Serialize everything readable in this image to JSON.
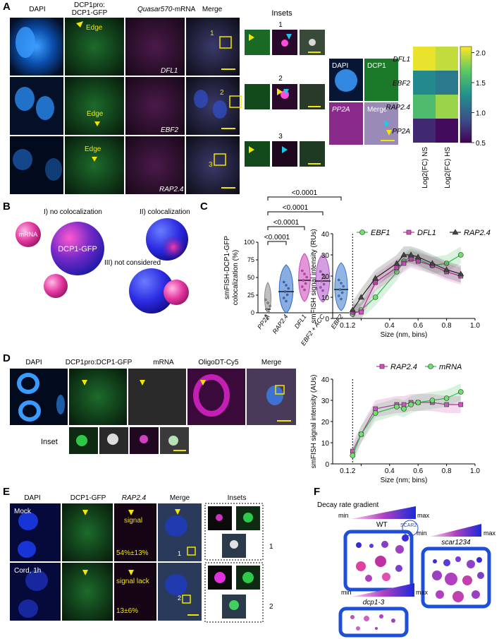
{
  "panels": {
    "A": "A",
    "B": "B",
    "C": "C",
    "D": "D",
    "E": "E",
    "F": "F"
  },
  "panelA": {
    "col_labels": [
      "DAPI",
      "DCP1pro:",
      "DCP1-GFP",
      "Quasar570",
      "-mRNA",
      "Merge"
    ],
    "row_labels": [
      "DFL1",
      "EBF2",
      "RAP2.4"
    ],
    "edge": "Edge",
    "insets_title": "Insets",
    "inset_numbers": [
      "1",
      "2",
      "3"
    ],
    "small_labels": [
      "DAPI",
      "DCP1",
      "PP2A",
      "Merge"
    ],
    "heatmap": {
      "rows": [
        "DFL1",
        "EBF2",
        "RAP2.4",
        "PP2A"
      ],
      "cols": [
        "Log2(FC) NS",
        "Log2(FC) HS"
      ],
      "values": [
        [
          2.05,
          1.95
        ],
        [
          1.25,
          1.15
        ],
        [
          1.6,
          1.85
        ],
        [
          0.7,
          0.55
        ]
      ],
      "colorbar_ticks": [
        "2.0",
        "1.5",
        "1.0",
        "0.5"
      ],
      "scale": [
        0.5,
        2.1
      ]
    }
  },
  "panelB": {
    "labels": [
      "I) no colocalization",
      "II) colocalization",
      "III) not considered"
    ],
    "mrna": "mRNA",
    "gfp": "DCP1-GFP"
  },
  "chart_data": [
    {
      "type": "violin",
      "ylabel": "smFISH-DCP1-GFP colocalization (%)",
      "categories": [
        "PP2A",
        "RAP2.4",
        "DFL1",
        "EBF2 + ACC",
        "EBF2"
      ],
      "medians": [
        5,
        30,
        46,
        45,
        33
      ],
      "ylim": [
        0,
        100
      ],
      "yticks": [
        "0",
        "25",
        "50",
        "75",
        "100"
      ],
      "significance": [
        "<0.0001",
        "<0.0001",
        "<0.0001",
        "<0.0001"
      ]
    },
    {
      "type": "line",
      "xlabel": "Size (nm, bins)",
      "ylabel": "smFISH signal intensity (RUs)",
      "xlim": [
        0,
        1
      ],
      "ylim": [
        0,
        40
      ],
      "xticks": [
        "0.1",
        "0.2",
        "0.4",
        "0.6",
        "0.8",
        "1.0"
      ],
      "yticks": [
        "0",
        "10",
        "20",
        "30",
        "40"
      ],
      "series": [
        {
          "name": "EBF1",
          "x": [
            0.14,
            0.2,
            0.3,
            0.45,
            0.5,
            0.55,
            0.6,
            0.7,
            0.8,
            0.9
          ],
          "y": [
            2,
            4,
            10,
            22,
            27,
            29,
            28,
            25,
            26,
            30
          ]
        },
        {
          "name": "DFL1",
          "x": [
            0.14,
            0.2,
            0.3,
            0.45,
            0.5,
            0.55,
            0.6,
            0.7,
            0.8,
            0.9
          ],
          "y": [
            3,
            3,
            17,
            24,
            26,
            28,
            27,
            25,
            22,
            20
          ]
        },
        {
          "name": "RAP2.4",
          "x": [
            0.14,
            0.2,
            0.3,
            0.45,
            0.5,
            0.55,
            0.6,
            0.7,
            0.8,
            0.9
          ],
          "y": [
            4,
            10,
            19,
            26,
            30,
            30,
            29,
            26,
            23,
            21
          ]
        }
      ]
    },
    {
      "type": "line",
      "xlabel": "Size (nm; bins)",
      "ylabel": "smFISH signal intensity (AUs)",
      "xlim": [
        0,
        1
      ],
      "ylim": [
        0,
        40
      ],
      "xticks": [
        "0.1",
        "0.2",
        "0.4",
        "0.6",
        "0.8",
        "1.0"
      ],
      "yticks": [
        "0",
        "10",
        "20",
        "30",
        "40"
      ],
      "series": [
        {
          "name": "RAP2.4",
          "x": [
            0.14,
            0.2,
            0.3,
            0.45,
            0.5,
            0.55,
            0.6,
            0.7,
            0.8,
            0.9
          ],
          "y": [
            6,
            14,
            26,
            28,
            28,
            29,
            29,
            29,
            28,
            28
          ]
        },
        {
          "name": "mRNA",
          "x": [
            0.14,
            0.2,
            0.3,
            0.45,
            0.5,
            0.55,
            0.6,
            0.7,
            0.8,
            0.9
          ],
          "y": [
            4,
            14,
            24,
            27,
            26,
            28,
            29,
            30,
            31,
            34
          ]
        }
      ]
    }
  ],
  "panelD": {
    "col_labels": [
      "DAPI",
      "DCP1pro:DCP1-GFP",
      "mRNA",
      "OligoDT-Cy5",
      "Merge"
    ],
    "inset": "Inset"
  },
  "panelE": {
    "col_labels": [
      "DAPI",
      "DCP1-GFP",
      "RAP2.4",
      "Merge",
      "Insets"
    ],
    "rows": [
      "Mock",
      "Cord, 1h"
    ],
    "signal": "signal",
    "signal_lack": "signal lack",
    "pct1": "54%±13%",
    "pct2": "13±6%",
    "inset_nums": [
      "1",
      "2"
    ]
  },
  "panelF": {
    "gradient_title": "Decay rate gradient",
    "min": "min",
    "max": "max",
    "wt": "WT",
    "scar2": "SCAR2",
    "scar1234": "scar1234",
    "dcp": "dcp1-3"
  },
  "colors": {
    "green": "#1fae3a",
    "magenta": "#c31fb4",
    "blue": "#1e4fd8",
    "yellow": "#f2e600"
  }
}
